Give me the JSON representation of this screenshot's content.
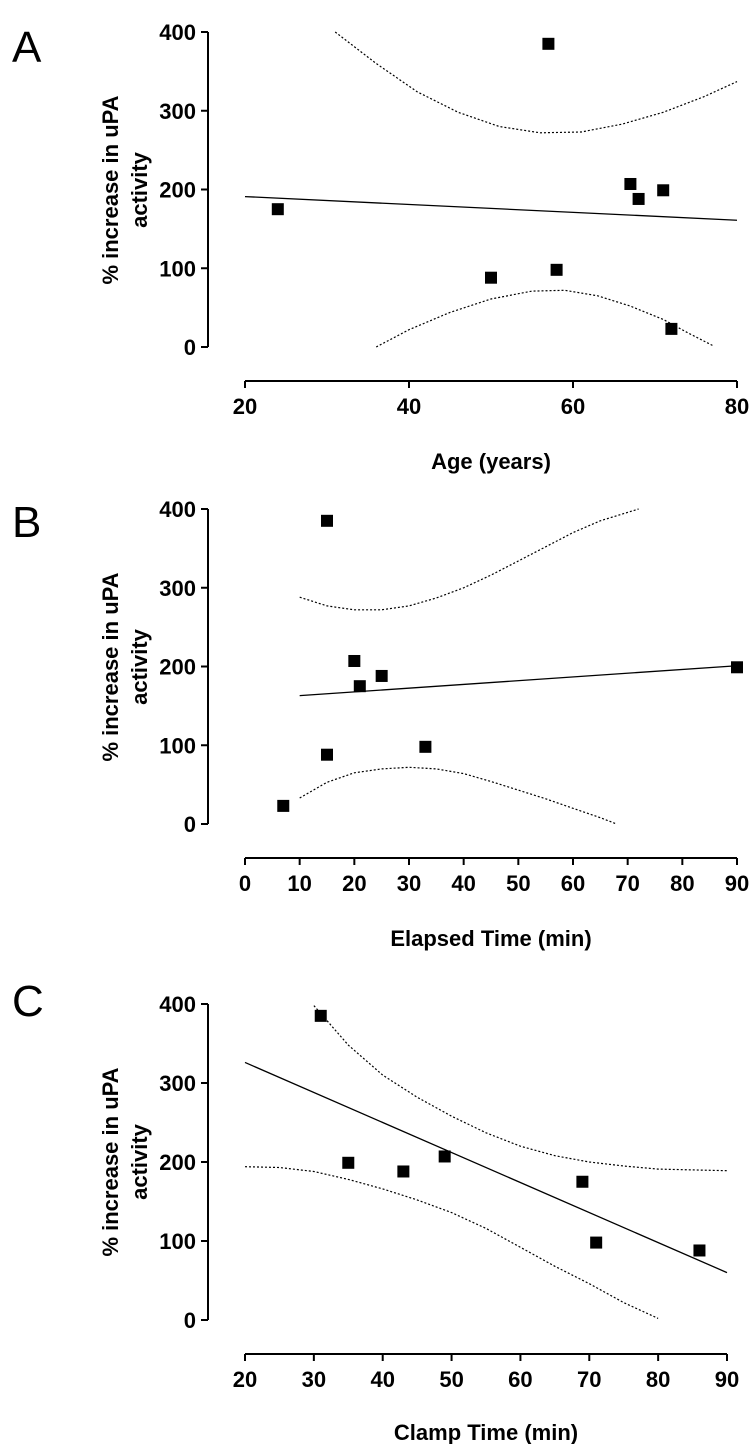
{
  "chart_data": [
    {
      "panel": "A",
      "type": "scatter",
      "xlabel": "Age (years)",
      "ylabel_lines": [
        "% increase in uPA",
        "activity"
      ],
      "xlim": [
        20,
        80
      ],
      "ylim": [
        0,
        400
      ],
      "xticks": [
        20,
        40,
        60,
        80
      ],
      "yticks": [
        0,
        100,
        200,
        300,
        400
      ],
      "points": [
        {
          "x": 24,
          "y": 175
        },
        {
          "x": 50,
          "y": 88
        },
        {
          "x": 57,
          "y": 385
        },
        {
          "x": 58,
          "y": 98
        },
        {
          "x": 67,
          "y": 207
        },
        {
          "x": 68,
          "y": 188
        },
        {
          "x": 71,
          "y": 199
        },
        {
          "x": 72,
          "y": 23
        }
      ],
      "fit_line": [
        {
          "x": 20,
          "y": 191
        },
        {
          "x": 80,
          "y": 161
        }
      ],
      "ci_upper": [
        {
          "x": 31,
          "y": 400
        },
        {
          "x": 36,
          "y": 360
        },
        {
          "x": 41,
          "y": 324
        },
        {
          "x": 46,
          "y": 298
        },
        {
          "x": 51,
          "y": 280
        },
        {
          "x": 56,
          "y": 272
        },
        {
          "x": 61,
          "y": 273
        },
        {
          "x": 66,
          "y": 283
        },
        {
          "x": 71,
          "y": 298
        },
        {
          "x": 76,
          "y": 318
        },
        {
          "x": 80,
          "y": 337
        }
      ],
      "ci_lower": [
        {
          "x": 36,
          "y": 0
        },
        {
          "x": 40,
          "y": 22
        },
        {
          "x": 45,
          "y": 44
        },
        {
          "x": 50,
          "y": 61
        },
        {
          "x": 55,
          "y": 71
        },
        {
          "x": 59,
          "y": 72
        },
        {
          "x": 63,
          "y": 65
        },
        {
          "x": 67,
          "y": 52
        },
        {
          "x": 71,
          "y": 35
        },
        {
          "x": 74,
          "y": 18
        },
        {
          "x": 77,
          "y": 2
        }
      ]
    },
    {
      "panel": "B",
      "type": "scatter",
      "xlabel": "Elapsed Time (min)",
      "ylabel_lines": [
        "% increase in uPA",
        "activity"
      ],
      "xlim": [
        0,
        90
      ],
      "ylim": [
        0,
        400
      ],
      "xticks": [
        0,
        10,
        20,
        30,
        40,
        50,
        60,
        70,
        80,
        90
      ],
      "yticks": [
        0,
        100,
        200,
        300,
        400
      ],
      "points": [
        {
          "x": 7,
          "y": 23
        },
        {
          "x": 15,
          "y": 385
        },
        {
          "x": 15,
          "y": 88
        },
        {
          "x": 20,
          "y": 207
        },
        {
          "x": 21,
          "y": 175
        },
        {
          "x": 25,
          "y": 188
        },
        {
          "x": 33,
          "y": 98
        },
        {
          "x": 90,
          "y": 199
        }
      ],
      "fit_line": [
        {
          "x": 10,
          "y": 163
        },
        {
          "x": 90,
          "y": 201
        }
      ],
      "ci_upper": [
        {
          "x": 10,
          "y": 288
        },
        {
          "x": 15,
          "y": 277
        },
        {
          "x": 20,
          "y": 272
        },
        {
          "x": 25,
          "y": 272
        },
        {
          "x": 30,
          "y": 277
        },
        {
          "x": 35,
          "y": 287
        },
        {
          "x": 40,
          "y": 300
        },
        {
          "x": 45,
          "y": 316
        },
        {
          "x": 50,
          "y": 334
        },
        {
          "x": 55,
          "y": 352
        },
        {
          "x": 60,
          "y": 370
        },
        {
          "x": 65,
          "y": 385
        },
        {
          "x": 72,
          "y": 400
        }
      ],
      "ci_lower": [
        {
          "x": 10,
          "y": 33
        },
        {
          "x": 15,
          "y": 53
        },
        {
          "x": 20,
          "y": 65
        },
        {
          "x": 25,
          "y": 70
        },
        {
          "x": 30,
          "y": 72
        },
        {
          "x": 35,
          "y": 70
        },
        {
          "x": 40,
          "y": 64
        },
        {
          "x": 45,
          "y": 54
        },
        {
          "x": 50,
          "y": 43
        },
        {
          "x": 55,
          "y": 32
        },
        {
          "x": 60,
          "y": 20
        },
        {
          "x": 65,
          "y": 8
        },
        {
          "x": 68,
          "y": 0
        }
      ]
    },
    {
      "panel": "C",
      "type": "scatter",
      "xlabel": "Clamp Time (min)",
      "ylabel_lines": [
        "% increase in uPA",
        "activity"
      ],
      "xlim": [
        20,
        90
      ],
      "ylim": [
        0,
        400
      ],
      "xticks": [
        20,
        30,
        40,
        50,
        60,
        70,
        80,
        90
      ],
      "yticks": [
        0,
        100,
        200,
        300,
        400
      ],
      "points": [
        {
          "x": 31,
          "y": 385
        },
        {
          "x": 35,
          "y": 199
        },
        {
          "x": 43,
          "y": 188
        },
        {
          "x": 49,
          "y": 207
        },
        {
          "x": 69,
          "y": 175
        },
        {
          "x": 71,
          "y": 98
        },
        {
          "x": 86,
          "y": 88
        }
      ],
      "fit_line": [
        {
          "x": 20,
          "y": 326
        },
        {
          "x": 90,
          "y": 60
        }
      ],
      "ci_upper": [
        {
          "x": 30,
          "y": 398
        },
        {
          "x": 35,
          "y": 348
        },
        {
          "x": 40,
          "y": 310
        },
        {
          "x": 45,
          "y": 282
        },
        {
          "x": 50,
          "y": 258
        },
        {
          "x": 55,
          "y": 237
        },
        {
          "x": 60,
          "y": 220
        },
        {
          "x": 65,
          "y": 208
        },
        {
          "x": 70,
          "y": 200
        },
        {
          "x": 75,
          "y": 195
        },
        {
          "x": 80,
          "y": 191
        },
        {
          "x": 85,
          "y": 190
        },
        {
          "x": 90,
          "y": 189
        }
      ],
      "ci_lower": [
        {
          "x": 20,
          "y": 194
        },
        {
          "x": 25,
          "y": 193
        },
        {
          "x": 30,
          "y": 188
        },
        {
          "x": 35,
          "y": 178
        },
        {
          "x": 40,
          "y": 166
        },
        {
          "x": 45,
          "y": 152
        },
        {
          "x": 50,
          "y": 136
        },
        {
          "x": 55,
          "y": 116
        },
        {
          "x": 60,
          "y": 92
        },
        {
          "x": 65,
          "y": 68
        },
        {
          "x": 70,
          "y": 46
        },
        {
          "x": 75,
          "y": 22
        },
        {
          "x": 80,
          "y": 2
        }
      ]
    }
  ]
}
